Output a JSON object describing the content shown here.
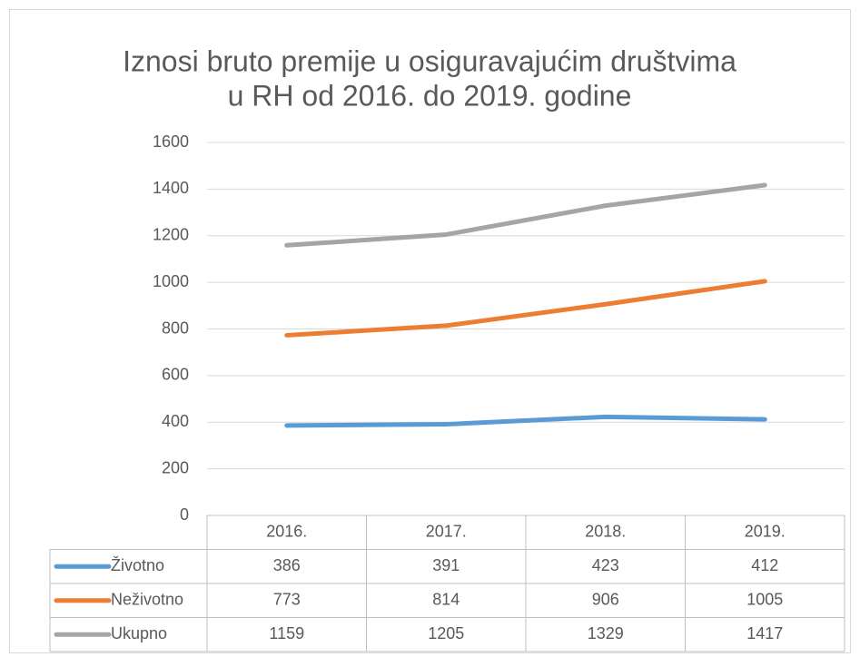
{
  "chart_data": {
    "type": "line",
    "title": [
      "Iznosi bruto premije u osiguravajućim društvima",
      "u RH od 2016. do 2019. godine"
    ],
    "categories": [
      "2016.",
      "2017.",
      "2018.",
      "2019."
    ],
    "series": [
      {
        "name": "Životno",
        "color": "#5b9bd5",
        "values": [
          386,
          391,
          423,
          412
        ]
      },
      {
        "name": "Neživotno",
        "color": "#ed7d31",
        "values": [
          773,
          814,
          906,
          1005
        ]
      },
      {
        "name": "Ukupno",
        "color": "#a5a5a5",
        "values": [
          1159,
          1205,
          1329,
          1417
        ]
      }
    ],
    "ylim": [
      0,
      1600
    ],
    "yticks": [
      0,
      200,
      400,
      600,
      800,
      1000,
      1200,
      1400,
      1600
    ],
    "grid": true
  }
}
